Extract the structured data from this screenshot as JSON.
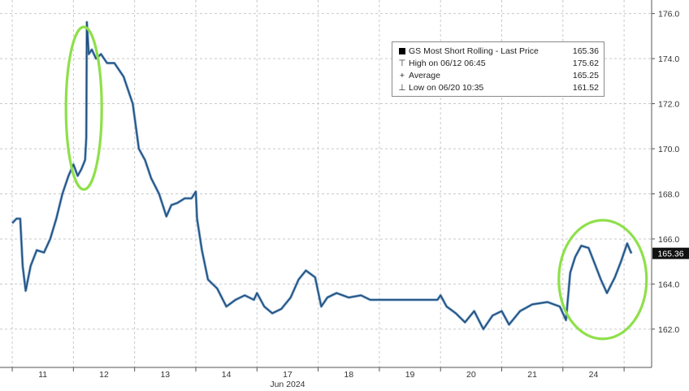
{
  "chart_data": {
    "type": "line",
    "title": "",
    "xlabel": "Jun 2024",
    "ylabel": "",
    "ylim": [
      160.3,
      176.6
    ],
    "yticks": [
      162.0,
      164.0,
      166.0,
      168.0,
      170.0,
      172.0,
      174.0,
      176.0
    ],
    "ytick_labels": [
      "162.0",
      "164.0",
      "166.0",
      "168.0",
      "170.0",
      "172.0",
      "174.0",
      "176.0"
    ],
    "xtick_labels": [
      "11",
      "12",
      "13",
      "14",
      "17",
      "18",
      "19",
      "20",
      "21",
      "24"
    ],
    "grid": true,
    "last_price_tag": "165.36",
    "legend": {
      "placement": "top-right",
      "entries": [
        {
          "symbol": "square",
          "label": "GS Most Short Rolling - Last Price",
          "value": "165.36"
        },
        {
          "symbol": "high",
          "label": "High on 06/12 06:45",
          "value": "175.62"
        },
        {
          "symbol": "average",
          "label": "Average",
          "value": "165.25"
        },
        {
          "symbol": "low",
          "label": "Low on 06/20 10:35",
          "value": "161.52"
        }
      ]
    },
    "annotations": [
      "green ellipse around spike on Jun 11",
      "green ellipse around rebound on Jun 24"
    ],
    "series": [
      {
        "values": [
          {
            "x": 0.0,
            "y": 166.7
          },
          {
            "x": 0.07,
            "y": 166.9
          },
          {
            "x": 0.13,
            "y": 166.9
          },
          {
            "x": 0.17,
            "y": 164.8
          },
          {
            "x": 0.22,
            "y": 163.7
          },
          {
            "x": 0.3,
            "y": 164.8
          },
          {
            "x": 0.4,
            "y": 165.5
          },
          {
            "x": 0.52,
            "y": 165.4
          },
          {
            "x": 0.62,
            "y": 166.0
          },
          {
            "x": 0.72,
            "y": 166.9
          },
          {
            "x": 0.82,
            "y": 168.0
          },
          {
            "x": 0.92,
            "y": 168.8
          },
          {
            "x": 1.0,
            "y": 169.3
          },
          {
            "x": 1.07,
            "y": 168.8
          },
          {
            "x": 1.13,
            "y": 169.1
          },
          {
            "x": 1.19,
            "y": 169.5
          },
          {
            "x": 1.21,
            "y": 170.5
          },
          {
            "x": 1.22,
            "y": 175.62
          },
          {
            "x": 1.25,
            "y": 174.2
          },
          {
            "x": 1.3,
            "y": 174.4
          },
          {
            "x": 1.37,
            "y": 174.0
          },
          {
            "x": 1.45,
            "y": 174.2
          },
          {
            "x": 1.55,
            "y": 173.8
          },
          {
            "x": 1.67,
            "y": 173.8
          },
          {
            "x": 1.82,
            "y": 173.2
          },
          {
            "x": 1.97,
            "y": 172.0
          },
          {
            "x": 2.07,
            "y": 170.0
          },
          {
            "x": 2.17,
            "y": 169.5
          },
          {
            "x": 2.27,
            "y": 168.7
          },
          {
            "x": 2.4,
            "y": 168.0
          },
          {
            "x": 2.52,
            "y": 167.0
          },
          {
            "x": 2.6,
            "y": 167.5
          },
          {
            "x": 2.7,
            "y": 167.6
          },
          {
            "x": 2.82,
            "y": 167.8
          },
          {
            "x": 2.93,
            "y": 167.8
          },
          {
            "x": 3.0,
            "y": 168.1
          },
          {
            "x": 3.02,
            "y": 166.9
          },
          {
            "x": 3.1,
            "y": 165.5
          },
          {
            "x": 3.2,
            "y": 164.2
          },
          {
            "x": 3.35,
            "y": 163.8
          },
          {
            "x": 3.5,
            "y": 163.0
          },
          {
            "x": 3.65,
            "y": 163.3
          },
          {
            "x": 3.8,
            "y": 163.5
          },
          {
            "x": 3.95,
            "y": 163.3
          },
          {
            "x": 4.0,
            "y": 163.6
          },
          {
            "x": 4.12,
            "y": 163.0
          },
          {
            "x": 4.25,
            "y": 162.7
          },
          {
            "x": 4.4,
            "y": 162.9
          },
          {
            "x": 4.55,
            "y": 163.4
          },
          {
            "x": 4.68,
            "y": 164.2
          },
          {
            "x": 4.8,
            "y": 164.6
          },
          {
            "x": 4.95,
            "y": 164.3
          },
          {
            "x": 5.05,
            "y": 163.0
          },
          {
            "x": 5.15,
            "y": 163.4
          },
          {
            "x": 5.3,
            "y": 163.6
          },
          {
            "x": 5.5,
            "y": 163.4
          },
          {
            "x": 5.7,
            "y": 163.5
          },
          {
            "x": 5.85,
            "y": 163.3
          },
          {
            "x": 6.0,
            "y": 163.3
          },
          {
            "x": 6.2,
            "y": 163.3
          },
          {
            "x": 6.45,
            "y": 163.3
          },
          {
            "x": 6.95,
            "y": 163.3
          },
          {
            "x": 7.0,
            "y": 163.5
          },
          {
            "x": 7.1,
            "y": 163.0
          },
          {
            "x": 7.25,
            "y": 162.7
          },
          {
            "x": 7.4,
            "y": 162.3
          },
          {
            "x": 7.55,
            "y": 162.8
          },
          {
            "x": 7.7,
            "y": 162.0
          },
          {
            "x": 7.85,
            "y": 162.6
          },
          {
            "x": 8.0,
            "y": 162.8
          },
          {
            "x": 8.12,
            "y": 162.2
          },
          {
            "x": 8.3,
            "y": 162.8
          },
          {
            "x": 8.5,
            "y": 163.1
          },
          {
            "x": 8.75,
            "y": 163.2
          },
          {
            "x": 8.95,
            "y": 163.0
          },
          {
            "x": 9.05,
            "y": 162.4
          },
          {
            "x": 9.12,
            "y": 164.5
          },
          {
            "x": 9.2,
            "y": 165.2
          },
          {
            "x": 9.3,
            "y": 165.7
          },
          {
            "x": 9.42,
            "y": 165.6
          },
          {
            "x": 9.52,
            "y": 164.9
          },
          {
            "x": 9.62,
            "y": 164.2
          },
          {
            "x": 9.72,
            "y": 163.6
          },
          {
            "x": 9.85,
            "y": 164.3
          },
          {
            "x": 9.95,
            "y": 165.0
          },
          {
            "x": 10.05,
            "y": 165.8
          },
          {
            "x": 10.12,
            "y": 165.36
          }
        ]
      }
    ],
    "colors": {
      "line": "#1f4f80",
      "line_edge": "#7fa5c8",
      "grid": "#c9c9c9",
      "highlight": "#8ee04a",
      "tag_bg": "#111111"
    }
  }
}
